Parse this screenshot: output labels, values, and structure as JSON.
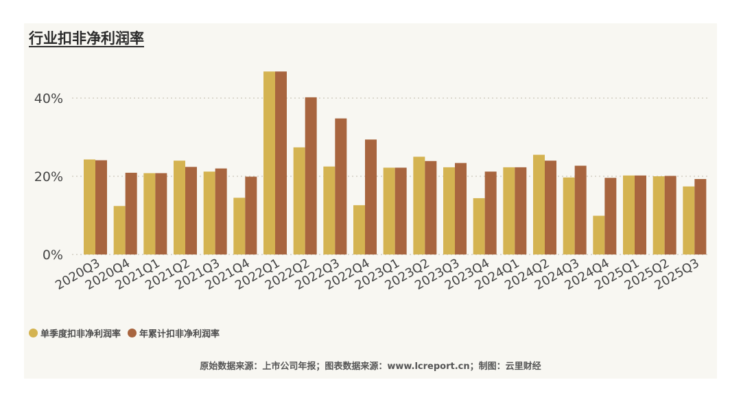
{
  "title": "行业扣非净利润率",
  "source": "原始数据来源：上市公司年报；图表数据来源：www.lcreport.cn；制图：云里财经",
  "colors": {
    "single_quarter": "#d4b351",
    "cumulative": "#a8653f",
    "background": "#f8f7f2",
    "gridline": "#c9c6b8"
  },
  "chart_data": {
    "type": "bar",
    "title": "行业扣非净利润率",
    "xlabel": "",
    "ylabel": "",
    "ylim": [
      0,
      0.5
    ],
    "yticks": [
      0,
      0.2,
      0.4
    ],
    "ytick_labels": [
      "0%",
      "20%",
      "40%"
    ],
    "grid": true,
    "legend_position": "bottom-left",
    "categories": [
      "2020Q3",
      "2020Q4",
      "2021Q1",
      "2021Q2",
      "2021Q3",
      "2021Q4",
      "2022Q1",
      "2022Q2",
      "2022Q3",
      "2022Q4",
      "2023Q1",
      "2023Q2",
      "2023Q3",
      "2023Q4",
      "2024Q1",
      "2024Q2",
      "2024Q3",
      "2024Q4",
      "2025Q1",
      "2025Q2",
      "2025Q3"
    ],
    "series": [
      {
        "name": "单季度扣非净利润率",
        "color": "#d4b351",
        "values": [
          0.243,
          0.124,
          0.208,
          0.24,
          0.212,
          0.145,
          0.468,
          0.274,
          0.225,
          0.126,
          0.222,
          0.25,
          0.223,
          0.144,
          0.223,
          0.255,
          0.197,
          0.099,
          0.202,
          0.2,
          0.174
        ]
      },
      {
        "name": "年累计扣非净利润率",
        "color": "#a8653f",
        "values": [
          0.241,
          0.209,
          0.208,
          0.224,
          0.22,
          0.199,
          0.468,
          0.402,
          0.348,
          0.294,
          0.222,
          0.239,
          0.234,
          0.212,
          0.223,
          0.24,
          0.227,
          0.196,
          0.202,
          0.201,
          0.193
        ]
      }
    ]
  }
}
